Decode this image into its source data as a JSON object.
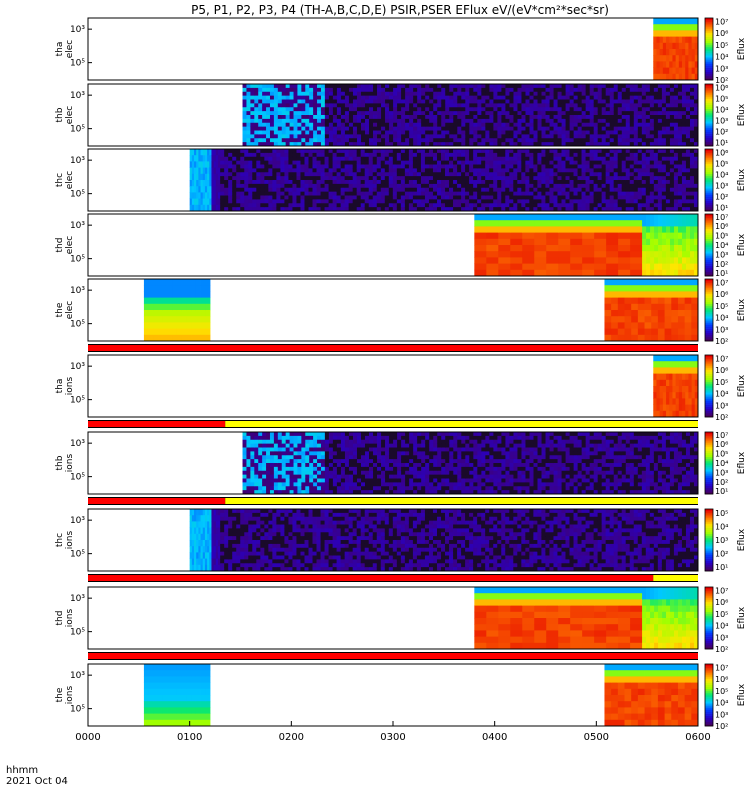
{
  "title": "P5, P1, P2, P3, P4 (TH-A,B,C,D,E) PSIR,PSER EFlux eV/(eV*cm²*sec*sr)",
  "footer": {
    "time_format": "hhmm",
    "date": "2021 Oct 04"
  },
  "colors": {
    "flag_bar": "#ff0000",
    "flag_bar_alt": "#ffff00"
  },
  "chart_data": {
    "type": "heatmap",
    "x_ticks": [
      "0000",
      "0100",
      "0200",
      "0300",
      "0400",
      "0500",
      "0600"
    ],
    "xlim": [
      0,
      6
    ],
    "x_unit": "hours",
    "colorbar_label": "Eflux",
    "panels": [
      {
        "probe": "tha",
        "species": "elec",
        "y_ticks": [
          "10³",
          "10⁵"
        ],
        "cbar_ticks": [
          "10²",
          "10³",
          "10⁴",
          "10⁵",
          "10⁶",
          "10⁷"
        ],
        "cmin": 2,
        "cmax": 7.3,
        "segments": [
          {
            "t0": 5.56,
            "t1": 6.0,
            "type": "sheath"
          }
        ]
      },
      {
        "probe": "thb",
        "species": "elec",
        "y_ticks": [
          "10³",
          "10⁵"
        ],
        "cbar_ticks": [
          "10¹",
          "10²",
          "10³",
          "10⁴",
          "10⁵",
          "10⁶"
        ],
        "cmin": 0.7,
        "cmax": 6.3,
        "segments": [
          {
            "t0": 1.52,
            "t1": 2.33,
            "type": "cyan_noise"
          },
          {
            "t0": 2.33,
            "t1": 6.0,
            "type": "noise"
          }
        ]
      },
      {
        "probe": "thc",
        "species": "elec",
        "y_ticks": [
          "10³",
          "10⁵"
        ],
        "cbar_ticks": [
          "10¹",
          "10²",
          "10³",
          "10⁴",
          "10⁵",
          "10⁶"
        ],
        "cmin": 0.7,
        "cmax": 6.3,
        "segments": [
          {
            "t0": 1.0,
            "t1": 1.3,
            "type": "cyan_block"
          },
          {
            "t0": 1.3,
            "t1": 6.0,
            "type": "noise"
          }
        ]
      },
      {
        "probe": "thd",
        "species": "elec",
        "y_ticks": [
          "10³",
          "10⁵"
        ],
        "cbar_ticks": [
          "10¹",
          "10²",
          "10³",
          "10⁴",
          "10⁵",
          "10⁶",
          "10⁷"
        ],
        "cmin": 0.7,
        "cmax": 7.3,
        "segments": [
          {
            "t0": 3.8,
            "t1": 5.45,
            "type": "sheath"
          },
          {
            "t0": 5.45,
            "t1": 6.0,
            "type": "sheath_soft"
          }
        ]
      },
      {
        "probe": "the",
        "species": "elec",
        "y_ticks": [
          "10³",
          "10⁵"
        ],
        "cbar_ticks": [
          "10²",
          "10³",
          "10⁴",
          "10⁵",
          "10⁶",
          "10⁷"
        ],
        "cmin": 2,
        "cmax": 7.3,
        "segments": [
          {
            "t0": 0.55,
            "t1": 1.2,
            "type": "blue_yellow"
          },
          {
            "t0": 5.08,
            "t1": 6.0,
            "type": "sheath"
          }
        ]
      },
      {
        "probe": "tha",
        "species": "ions",
        "y_ticks": [
          "10³",
          "10⁵"
        ],
        "cbar_ticks": [
          "10²",
          "10³",
          "10⁴",
          "10⁵",
          "10⁶",
          "10⁷"
        ],
        "cmin": 2,
        "cmax": 7.3,
        "segments": [
          {
            "t0": 5.56,
            "t1": 6.0,
            "type": "sheath"
          }
        ]
      },
      {
        "probe": "thb",
        "species": "ions",
        "y_ticks": [
          "10³",
          "10⁵"
        ],
        "cbar_ticks": [
          "10¹",
          "10²",
          "10³",
          "10⁴",
          "10⁵",
          "10⁶",
          "10⁷"
        ],
        "cmin": 0.7,
        "cmax": 7.3,
        "segments": [
          {
            "t0": 1.52,
            "t1": 2.33,
            "type": "cyan_noise"
          },
          {
            "t0": 2.33,
            "t1": 6.0,
            "type": "noise"
          }
        ]
      },
      {
        "probe": "thc",
        "species": "ions",
        "y_ticks": [
          "10³",
          "10⁵"
        ],
        "cbar_ticks": [
          "10¹",
          "10²",
          "10³",
          "10⁴",
          "10⁵"
        ],
        "cmin": 0.7,
        "cmax": 5.3,
        "segments": [
          {
            "t0": 1.0,
            "t1": 1.3,
            "type": "cyan_block"
          },
          {
            "t0": 1.3,
            "t1": 6.0,
            "type": "noise"
          }
        ]
      },
      {
        "probe": "thd",
        "species": "ions",
        "y_ticks": [
          "10³",
          "10⁵"
        ],
        "cbar_ticks": [
          "10²",
          "10³",
          "10⁴",
          "10⁵",
          "10⁶",
          "10⁷"
        ],
        "cmin": 2,
        "cmax": 7.3,
        "segments": [
          {
            "t0": 3.8,
            "t1": 5.45,
            "type": "sheath"
          },
          {
            "t0": 5.45,
            "t1": 6.0,
            "type": "sheath_soft"
          }
        ]
      },
      {
        "probe": "the",
        "species": "ions",
        "y_ticks": [
          "10³",
          "10⁵"
        ],
        "cbar_ticks": [
          "10²",
          "10³",
          "10⁴",
          "10⁵",
          "10⁶",
          "10⁷"
        ],
        "cmin": 2,
        "cmax": 7.3,
        "segments": [
          {
            "t0": 0.55,
            "t1": 1.2,
            "type": "blue_green"
          },
          {
            "t0": 5.08,
            "t1": 6.0,
            "type": "sheath"
          }
        ]
      }
    ],
    "flag_bars": [
      {
        "after_panel": 5,
        "segments": [
          {
            "t0": 0,
            "t1": 6,
            "color": "red"
          }
        ]
      },
      {
        "after_panel": 6,
        "segments": [
          {
            "t0": 0,
            "t1": 1.35,
            "color": "red"
          },
          {
            "t0": 1.35,
            "t1": 6,
            "color": "yellow"
          }
        ]
      },
      {
        "after_panel": 7,
        "segments": [
          {
            "t0": 0,
            "t1": 1.35,
            "color": "red"
          },
          {
            "t0": 1.35,
            "t1": 6,
            "color": "yellow"
          }
        ]
      },
      {
        "after_panel": 8,
        "segments": [
          {
            "t0": 0,
            "t1": 5.56,
            "color": "red"
          },
          {
            "t0": 5.56,
            "t1": 6,
            "color": "yellow"
          }
        ]
      },
      {
        "after_panel": 9,
        "segments": [
          {
            "t0": 0,
            "t1": 6,
            "color": "red"
          }
        ]
      }
    ]
  }
}
